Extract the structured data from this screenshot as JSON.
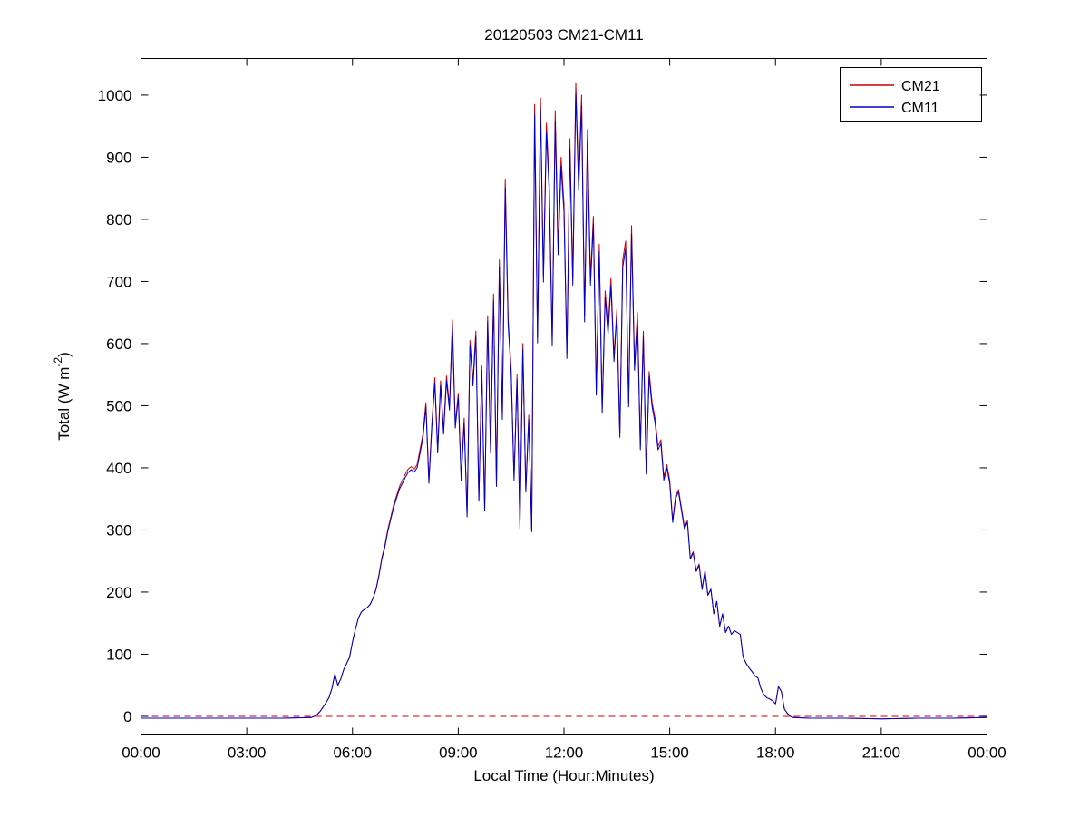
{
  "figure": {
    "title": "20120503 CM21-CM11"
  },
  "chart_data": {
    "type": "line",
    "title": "20120503 CM21-CM11",
    "xlabel": "Local Time (Hour:Minutes)",
    "ylabel": "Total (W m-2)",
    "ylabel_main": "Total (W m",
    "ylabel_sup": "-2",
    "ylabel_close": ")",
    "x_domain_minutes": [
      0,
      1440
    ],
    "y_domain": [
      -30,
      1059
    ],
    "x_ticks": [
      {
        "minute": 0,
        "label": "00:00"
      },
      {
        "minute": 180,
        "label": "03:00"
      },
      {
        "minute": 360,
        "label": "06:00"
      },
      {
        "minute": 540,
        "label": "09:00"
      },
      {
        "minute": 720,
        "label": "12:00"
      },
      {
        "minute": 900,
        "label": "15:00"
      },
      {
        "minute": 1080,
        "label": "18:00"
      },
      {
        "minute": 1260,
        "label": "21:00"
      },
      {
        "minute": 1440,
        "label": "00:00"
      }
    ],
    "y_ticks": [
      0,
      100,
      200,
      300,
      400,
      500,
      600,
      700,
      800,
      900,
      1000
    ],
    "grid": false,
    "legend_position": "top-right",
    "zero_line": {
      "y": 0,
      "color": "#cc0000",
      "style": "dashed"
    },
    "x_minutes": [
      0,
      60,
      120,
      180,
      240,
      290,
      295,
      300,
      305,
      310,
      315,
      320,
      325,
      330,
      335,
      340,
      345,
      350,
      355,
      360,
      365,
      370,
      375,
      380,
      385,
      390,
      395,
      400,
      405,
      410,
      415,
      420,
      425,
      430,
      435,
      440,
      445,
      450,
      455,
      460,
      465,
      470,
      475,
      480,
      485,
      490,
      495,
      500,
      505,
      510,
      515,
      520,
      525,
      530,
      535,
      540,
      545,
      550,
      555,
      560,
      565,
      570,
      575,
      580,
      585,
      590,
      595,
      600,
      605,
      610,
      615,
      620,
      625,
      630,
      635,
      640,
      645,
      650,
      655,
      660,
      665,
      670,
      675,
      680,
      685,
      690,
      695,
      700,
      705,
      710,
      715,
      720,
      725,
      730,
      735,
      740,
      745,
      750,
      755,
      760,
      765,
      770,
      775,
      780,
      785,
      790,
      795,
      800,
      805,
      810,
      815,
      820,
      825,
      830,
      835,
      840,
      845,
      850,
      855,
      860,
      865,
      870,
      875,
      880,
      885,
      890,
      895,
      900,
      905,
      910,
      915,
      920,
      925,
      930,
      935,
      940,
      945,
      950,
      955,
      960,
      965,
      970,
      975,
      980,
      985,
      990,
      995,
      1000,
      1005,
      1010,
      1015,
      1020,
      1025,
      1030,
      1035,
      1040,
      1045,
      1050,
      1055,
      1060,
      1065,
      1070,
      1075,
      1080,
      1085,
      1090,
      1095,
      1100,
      1105,
      1110,
      1140,
      1200,
      1260,
      1320,
      1380,
      1440
    ],
    "series": [
      {
        "name": "CM21",
        "color": "#cc0000",
        "values": [
          -3,
          -3,
          -3,
          -3,
          -3,
          -2,
          0,
          3,
          8,
          15,
          22,
          30,
          45,
          68,
          50,
          60,
          75,
          85,
          95,
          120,
          140,
          158,
          168,
          172,
          175,
          180,
          190,
          205,
          228,
          255,
          275,
          300,
          320,
          340,
          355,
          370,
          380,
          390,
          398,
          402,
          398,
          405,
          430,
          455,
          505,
          380,
          470,
          545,
          430,
          540,
          460,
          548,
          500,
          638,
          470,
          520,
          385,
          480,
          325,
          605,
          540,
          620,
          350,
          565,
          335,
          645,
          430,
          680,
          375,
          735,
          485,
          865,
          640,
          560,
          385,
          550,
          305,
          600,
          365,
          485,
          300,
          985,
          610,
          995,
          710,
          955,
          855,
          605,
          975,
          755,
          900,
          825,
          585,
          930,
          705,
          1020,
          860,
          1000,
          645,
          945,
          705,
          805,
          525,
          760,
          495,
          685,
          625,
          705,
          580,
          655,
          455,
          735,
          765,
          505,
          790,
          565,
          650,
          435,
          620,
          395,
          555,
          505,
          480,
          435,
          445,
          385,
          405,
          380,
          315,
          355,
          365,
          335,
          305,
          315,
          255,
          265,
          235,
          245,
          205,
          235,
          195,
          205,
          165,
          185,
          145,
          165,
          135,
          145,
          132,
          138,
          135,
          132,
          95,
          85,
          78,
          72,
          65,
          62,
          45,
          35,
          30,
          28,
          25,
          20,
          48,
          40,
          12,
          5,
          0,
          -2,
          -3,
          -3,
          -4,
          -3,
          -3,
          -2
        ]
      },
      {
        "name": "CM11",
        "color": "#0000cc",
        "values": [
          -3,
          -3,
          -3,
          -3,
          -3,
          -2,
          0,
          3,
          8,
          15,
          22,
          30,
          45,
          68,
          50,
          60,
          75,
          85,
          95,
          120,
          140,
          158,
          168,
          172,
          175,
          180,
          190,
          204,
          226,
          253,
          272,
          297,
          317,
          336,
          351,
          366,
          375,
          385,
          393,
          397,
          393,
          400,
          424,
          449,
          498,
          375,
          464,
          537,
          424,
          532,
          454,
          540,
          493,
          628,
          464,
          513,
          380,
          473,
          321,
          596,
          532,
          611,
          346,
          557,
          331,
          635,
          424,
          669,
          370,
          723,
          478,
          851,
          630,
          552,
          380,
          542,
          302,
          591,
          361,
          478,
          297,
          968,
          601,
          978,
          699,
          939,
          841,
          596,
          958,
          743,
          885,
          811,
          576,
          914,
          694,
          1003,
          846,
          983,
          635,
          929,
          694,
          792,
          517,
          748,
          488,
          674,
          615,
          694,
          571,
          645,
          449,
          723,
          753,
          498,
          777,
          557,
          640,
          429,
          611,
          390,
          547,
          498,
          473,
          429,
          439,
          380,
          400,
          375,
          312,
          351,
          361,
          331,
          302,
          312,
          253,
          263,
          233,
          243,
          204,
          233,
          195,
          204,
          165,
          185,
          145,
          165,
          135,
          145,
          132,
          138,
          135,
          132,
          95,
          85,
          78,
          72,
          65,
          62,
          45,
          35,
          30,
          28,
          25,
          20,
          48,
          40,
          12,
          5,
          0,
          -2,
          -3,
          -3,
          -4,
          -3,
          -3,
          -2
        ]
      }
    ]
  }
}
